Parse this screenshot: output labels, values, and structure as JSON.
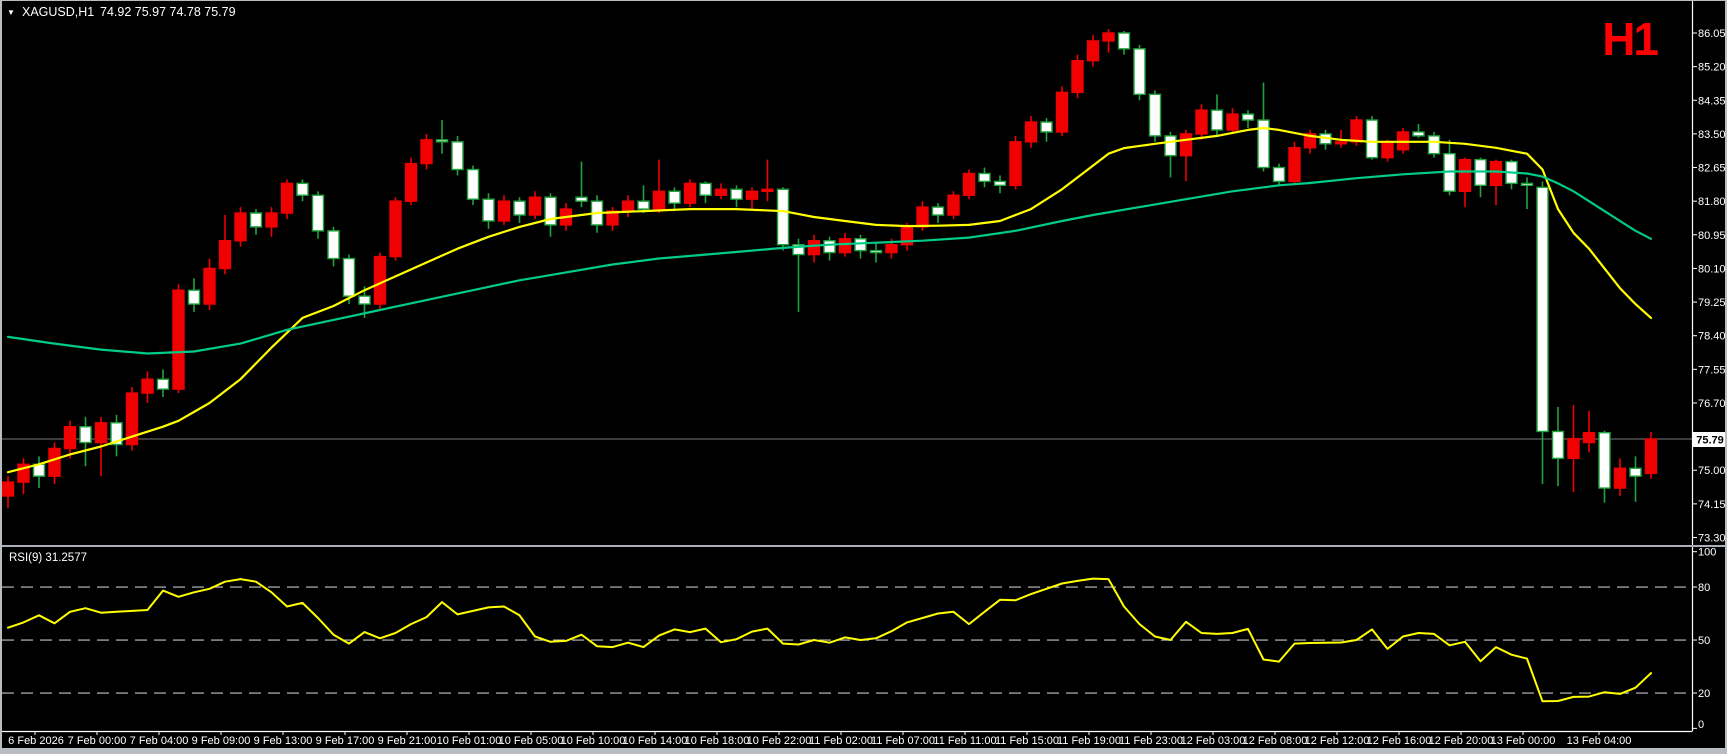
{
  "ui": {
    "symbol_dropdown_icon": "▼",
    "header_symbol": "XAGUSD,H1",
    "header_ohlc": "74.92 75.97 74.78 75.79",
    "timeframe_watermark": "H1",
    "rsi_label": "RSI(9) 31.2577",
    "current_price_tag": "75.79"
  },
  "colors": {
    "background": "#000000",
    "bull_body": "#f00000",
    "bear_body": "#ffffff",
    "bear_border": "#1fa33c",
    "ma_fast": "#ffff00",
    "ma_slow": "#00cc88",
    "rsi_line": "#ffff00",
    "rsi_level_dash": "#c3c3c3",
    "current_price_line": "#7a7a7a",
    "axis_text": "#ffffff",
    "watermark": "#ff0000",
    "plot_border": "#ffffff",
    "window_frame": "#b9bdc2",
    "pane_separator": "#aab0b6"
  },
  "chart_data": {
    "type": "candlestick",
    "title": "XAGUSD,H1",
    "symbol": "XAGUSD",
    "timeframe": "H1",
    "last_values": {
      "open": 74.92,
      "high": 75.97,
      "low": 74.78,
      "close": 75.79
    },
    "price_axis": {
      "ticks": [
        86.05,
        85.2,
        84.35,
        83.5,
        82.65,
        81.8,
        80.95,
        80.1,
        79.25,
        78.4,
        77.55,
        76.7,
        75.0,
        74.15,
        73.3
      ],
      "current_price": 75.79,
      "visible_range": [
        73.1,
        86.9
      ]
    },
    "time_axis": {
      "labels": [
        "6 Feb 2026",
        "7 Feb 00:00",
        "7 Feb 04:00",
        "9 Feb 09:00",
        "9 Feb 13:00",
        "9 Feb 17:00",
        "9 Feb 21:00",
        "10 Feb 01:00",
        "10 Feb 05:00",
        "10 Feb 10:00",
        "10 Feb 14:00",
        "10 Feb 18:00",
        "10 Feb 22:00",
        "11 Feb 02:00",
        "11 Feb 07:00",
        "11 Feb 11:00",
        "11 Feb 15:00",
        "11 Feb 19:00",
        "11 Feb 23:00",
        "12 Feb 03:00",
        "12 Feb 08:00",
        "12 Feb 12:00",
        "12 Feb 16:00",
        "12 Feb 20:00",
        "13 Feb 00:00",
        "13 Feb 04:00"
      ]
    },
    "candles": [
      [
        74.35,
        74.85,
        74.05,
        74.7
      ],
      [
        74.7,
        75.3,
        74.4,
        75.15
      ],
      [
        75.15,
        75.35,
        74.55,
        74.85
      ],
      [
        74.85,
        75.7,
        74.65,
        75.55
      ],
      [
        75.55,
        76.25,
        75.3,
        76.1
      ],
      [
        76.1,
        76.35,
        75.1,
        75.7
      ],
      [
        75.7,
        76.35,
        74.85,
        76.2
      ],
      [
        76.2,
        76.4,
        75.35,
        75.65
      ],
      [
        75.65,
        77.1,
        75.5,
        76.95
      ],
      [
        76.95,
        77.5,
        76.7,
        77.3
      ],
      [
        77.3,
        77.55,
        76.85,
        77.05
      ],
      [
        77.05,
        79.7,
        76.95,
        79.55
      ],
      [
        79.55,
        79.85,
        79.0,
        79.2
      ],
      [
        79.2,
        80.35,
        79.05,
        80.1
      ],
      [
        80.1,
        81.45,
        79.95,
        80.8
      ],
      [
        80.8,
        81.65,
        80.65,
        81.5
      ],
      [
        81.5,
        81.6,
        80.95,
        81.15
      ],
      [
        81.15,
        81.65,
        80.9,
        81.5
      ],
      [
        81.5,
        82.35,
        81.35,
        82.25
      ],
      [
        82.25,
        82.35,
        81.8,
        81.95
      ],
      [
        81.95,
        82.05,
        80.85,
        81.05
      ],
      [
        81.05,
        81.15,
        80.15,
        80.35
      ],
      [
        80.35,
        80.45,
        79.2,
        79.4
      ],
      [
        79.4,
        79.65,
        78.85,
        79.2
      ],
      [
        79.2,
        80.5,
        79.05,
        80.4
      ],
      [
        80.4,
        81.9,
        80.3,
        81.8
      ],
      [
        81.8,
        82.9,
        81.7,
        82.75
      ],
      [
        82.75,
        83.5,
        82.6,
        83.35
      ],
      [
        83.35,
        83.85,
        83.0,
        83.3
      ],
      [
        83.3,
        83.45,
        82.45,
        82.6
      ],
      [
        82.6,
        82.7,
        81.7,
        81.85
      ],
      [
        81.85,
        82.0,
        81.1,
        81.3
      ],
      [
        81.3,
        81.95,
        81.2,
        81.8
      ],
      [
        81.8,
        81.9,
        81.25,
        81.45
      ],
      [
        81.45,
        82.05,
        81.35,
        81.9
      ],
      [
        81.9,
        82.0,
        80.9,
        81.2
      ],
      [
        81.2,
        81.75,
        81.05,
        81.6
      ],
      [
        81.9,
        82.8,
        81.65,
        81.8
      ],
      [
        81.8,
        81.95,
        81.0,
        81.2
      ],
      [
        81.2,
        81.65,
        81.05,
        81.55
      ],
      [
        81.55,
        81.95,
        81.4,
        81.8
      ],
      [
        81.8,
        82.2,
        81.5,
        81.6
      ],
      [
        81.6,
        82.85,
        81.5,
        82.05
      ],
      [
        82.05,
        82.15,
        81.55,
        81.75
      ],
      [
        81.75,
        82.35,
        81.65,
        82.25
      ],
      [
        82.25,
        82.3,
        81.75,
        81.95
      ],
      [
        81.95,
        82.25,
        81.85,
        82.1
      ],
      [
        82.1,
        82.2,
        81.65,
        81.85
      ],
      [
        81.85,
        82.15,
        81.6,
        82.05
      ],
      [
        82.05,
        82.85,
        81.8,
        82.1
      ],
      [
        82.1,
        82.15,
        80.55,
        80.7
      ],
      [
        80.7,
        80.85,
        79.0,
        80.45
      ],
      [
        80.45,
        80.95,
        80.25,
        80.8
      ],
      [
        80.8,
        80.9,
        80.3,
        80.5
      ],
      [
        80.5,
        81.0,
        80.4,
        80.85
      ],
      [
        80.85,
        80.95,
        80.35,
        80.55
      ],
      [
        80.55,
        80.75,
        80.25,
        80.5
      ],
      [
        80.5,
        80.85,
        80.35,
        80.7
      ],
      [
        80.7,
        81.25,
        80.55,
        81.15
      ],
      [
        81.15,
        81.8,
        81.05,
        81.65
      ],
      [
        81.65,
        81.75,
        81.25,
        81.45
      ],
      [
        81.45,
        82.05,
        81.35,
        81.95
      ],
      [
        81.95,
        82.6,
        81.85,
        82.5
      ],
      [
        82.5,
        82.65,
        82.15,
        82.3
      ],
      [
        82.3,
        82.45,
        82.0,
        82.2
      ],
      [
        82.2,
        83.45,
        82.1,
        83.3
      ],
      [
        83.3,
        83.95,
        83.15,
        83.8
      ],
      [
        83.8,
        83.9,
        83.3,
        83.55
      ],
      [
        83.55,
        84.7,
        83.45,
        84.55
      ],
      [
        84.55,
        85.5,
        84.4,
        85.35
      ],
      [
        85.35,
        86.0,
        85.2,
        85.85
      ],
      [
        85.85,
        86.15,
        85.55,
        86.05
      ],
      [
        86.05,
        86.1,
        85.5,
        85.65
      ],
      [
        85.65,
        85.75,
        84.35,
        84.5
      ],
      [
        84.5,
        84.6,
        83.3,
        83.45
      ],
      [
        83.45,
        83.55,
        82.4,
        82.95
      ],
      [
        82.95,
        83.6,
        82.3,
        83.5
      ],
      [
        83.5,
        84.25,
        83.35,
        84.1
      ],
      [
        84.1,
        84.5,
        83.45,
        83.6
      ],
      [
        83.6,
        84.15,
        83.5,
        84.0
      ],
      [
        84.0,
        84.1,
        83.65,
        83.85
      ],
      [
        83.85,
        84.8,
        82.55,
        82.65
      ],
      [
        82.65,
        82.75,
        82.2,
        82.3
      ],
      [
        82.3,
        83.3,
        82.2,
        83.15
      ],
      [
        83.15,
        83.6,
        83.0,
        83.5
      ],
      [
        83.5,
        83.6,
        83.1,
        83.25
      ],
      [
        83.25,
        83.6,
        83.15,
        83.3
      ],
      [
        83.3,
        83.95,
        83.2,
        83.85
      ],
      [
        83.85,
        83.95,
        82.85,
        82.9
      ],
      [
        82.9,
        83.35,
        82.8,
        83.3
      ],
      [
        83.1,
        83.65,
        83.0,
        83.55
      ],
      [
        83.55,
        83.75,
        83.4,
        83.45
      ],
      [
        83.45,
        83.55,
        82.9,
        83.0
      ],
      [
        83.0,
        83.35,
        81.95,
        82.05
      ],
      [
        82.05,
        82.9,
        81.65,
        82.85
      ],
      [
        82.85,
        82.9,
        81.9,
        82.2
      ],
      [
        82.2,
        82.85,
        81.7,
        82.8
      ],
      [
        82.8,
        82.85,
        82.1,
        82.25
      ],
      [
        82.25,
        82.4,
        81.6,
        82.2
      ],
      [
        82.15,
        82.3,
        74.65,
        75.98
      ],
      [
        75.98,
        76.6,
        74.6,
        75.3
      ],
      [
        75.3,
        76.65,
        74.45,
        75.8
      ],
      [
        75.7,
        76.5,
        75.45,
        75.95
      ],
      [
        75.95,
        76.0,
        74.18,
        74.55
      ],
      [
        74.55,
        75.3,
        74.35,
        75.05
      ],
      [
        75.05,
        75.35,
        74.2,
        74.85
      ],
      [
        74.92,
        75.97,
        74.78,
        75.79
      ]
    ],
    "overlays": [
      {
        "name": "ma-fast-yellow",
        "color_key": "ma_fast",
        "points": [
          [
            0,
            74.95
          ],
          [
            2,
            75.15
          ],
          [
            4,
            75.4
          ],
          [
            6,
            75.6
          ],
          [
            8,
            75.85
          ],
          [
            10,
            76.1
          ],
          [
            11,
            76.25
          ],
          [
            13,
            76.7
          ],
          [
            15,
            77.3
          ],
          [
            17,
            78.1
          ],
          [
            19,
            78.85
          ],
          [
            21,
            79.15
          ],
          [
            23,
            79.55
          ],
          [
            25,
            79.9
          ],
          [
            27,
            80.25
          ],
          [
            29,
            80.6
          ],
          [
            31,
            80.9
          ],
          [
            33,
            81.15
          ],
          [
            35,
            81.35
          ],
          [
            38,
            81.5
          ],
          [
            41,
            81.55
          ],
          [
            44,
            81.6
          ],
          [
            47,
            81.6
          ],
          [
            50,
            81.55
          ],
          [
            52,
            81.4
          ],
          [
            54,
            81.3
          ],
          [
            56,
            81.2
          ],
          [
            58,
            81.17
          ],
          [
            60,
            81.18
          ],
          [
            62,
            81.2
          ],
          [
            64,
            81.3
          ],
          [
            66,
            81.6
          ],
          [
            68,
            82.1
          ],
          [
            70,
            82.7
          ],
          [
            71,
            83.0
          ],
          [
            72,
            83.14
          ],
          [
            74,
            83.25
          ],
          [
            76,
            83.35
          ],
          [
            78,
            83.45
          ],
          [
            80,
            83.6
          ],
          [
            81,
            83.65
          ],
          [
            82,
            83.6
          ],
          [
            84,
            83.45
          ],
          [
            86,
            83.35
          ],
          [
            88,
            83.3
          ],
          [
            90,
            83.3
          ],
          [
            92,
            83.3
          ],
          [
            94,
            83.25
          ],
          [
            96,
            83.15
          ],
          [
            98,
            83.0
          ],
          [
            99,
            82.6
          ],
          [
            100,
            81.6
          ],
          [
            101,
            81.0
          ],
          [
            102,
            80.6
          ],
          [
            103,
            80.1
          ],
          [
            104,
            79.6
          ],
          [
            105,
            79.2
          ],
          [
            106,
            78.85
          ]
        ]
      },
      {
        "name": "ma-slow-teal",
        "color_key": "ma_slow",
        "points": [
          [
            0,
            78.37
          ],
          [
            3,
            78.2
          ],
          [
            6,
            78.05
          ],
          [
            9,
            77.95
          ],
          [
            12,
            78.0
          ],
          [
            15,
            78.2
          ],
          [
            18,
            78.55
          ],
          [
            21,
            78.8
          ],
          [
            24,
            79.05
          ],
          [
            27,
            79.3
          ],
          [
            30,
            79.55
          ],
          [
            33,
            79.8
          ],
          [
            36,
            80.0
          ],
          [
            39,
            80.2
          ],
          [
            42,
            80.35
          ],
          [
            45,
            80.45
          ],
          [
            48,
            80.55
          ],
          [
            50,
            80.62
          ],
          [
            53,
            80.7
          ],
          [
            56,
            80.75
          ],
          [
            59,
            80.8
          ],
          [
            62,
            80.88
          ],
          [
            65,
            81.05
          ],
          [
            68,
            81.3
          ],
          [
            70,
            81.45
          ],
          [
            73,
            81.65
          ],
          [
            76,
            81.85
          ],
          [
            79,
            82.05
          ],
          [
            82,
            82.2
          ],
          [
            84,
            82.26
          ],
          [
            87,
            82.38
          ],
          [
            90,
            82.48
          ],
          [
            93,
            82.55
          ],
          [
            96,
            82.55
          ],
          [
            98,
            82.5
          ],
          [
            99,
            82.42
          ],
          [
            100,
            82.25
          ],
          [
            101,
            82.05
          ],
          [
            102,
            81.8
          ],
          [
            103,
            81.55
          ],
          [
            104,
            81.3
          ],
          [
            105,
            81.05
          ],
          [
            106,
            80.85
          ]
        ]
      }
    ],
    "rsi": {
      "name": "RSI(9)",
      "period": 9,
      "current_value": 31.2577,
      "levels": [
        80,
        50,
        20
      ],
      "axis_ticks": [
        100,
        80,
        50,
        20,
        0
      ],
      "range": [
        0,
        100
      ],
      "values": [
        57,
        60,
        64,
        59.5,
        66,
        68,
        65.5,
        66,
        66.5,
        67,
        78,
        74.5,
        77,
        79,
        83,
        84.5,
        83,
        77,
        69,
        71,
        62.5,
        53,
        48,
        54.5,
        51,
        54,
        59,
        63,
        71.5,
        64.5,
        66.5,
        68.5,
        69,
        64,
        52,
        49,
        49.5,
        53,
        46.5,
        46,
        48.5,
        46,
        52.5,
        56,
        54.5,
        56.5,
        48.8,
        50.5,
        54.8,
        56.5,
        48,
        47.5,
        50,
        48.5,
        51.5,
        50,
        51,
        55,
        60,
        62.5,
        65,
        66,
        59,
        66,
        72.8,
        72.5,
        76,
        79,
        82,
        83.5,
        84.8,
        84.5,
        69,
        59,
        52,
        50,
        60.3,
        54,
        53.5,
        54,
        56.3,
        39,
        37.8,
        48,
        48.3,
        48.5,
        48.6,
        50,
        56,
        45,
        52,
        54,
        53.5,
        47,
        49,
        38,
        46,
        41.7,
        39.5,
        15.3,
        15.5,
        17.8,
        18,
        20.5,
        19.5,
        23,
        31.26
      ]
    }
  }
}
